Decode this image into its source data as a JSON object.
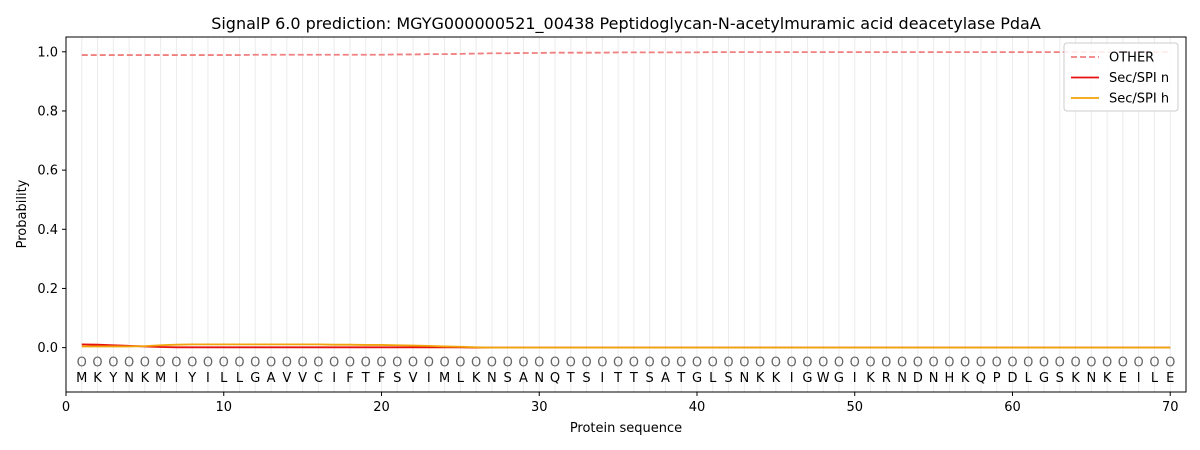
{
  "chart_data": {
    "type": "line",
    "title": "SignalP 6.0 prediction: MGYG000000521_00438 Peptidoglycan-N-acetylmuramic acid deacetylase PdaA",
    "xlabel": "Protein sequence",
    "ylabel": "Probability",
    "xlim": [
      0,
      71
    ],
    "ylim": [
      -0.15,
      1.05
    ],
    "xticks": [
      0,
      10,
      20,
      30,
      40,
      50,
      60,
      70
    ],
    "yticks": [
      0.0,
      0.2,
      0.4,
      0.6,
      0.8,
      1.0
    ],
    "xtick_labels": [
      "0",
      "10",
      "20",
      "30",
      "40",
      "50",
      "60",
      "70"
    ],
    "ytick_labels": [
      "0.0",
      "0.2",
      "0.4",
      "0.6",
      "0.8",
      "1.0"
    ],
    "grid": "vertical lines at each residue position",
    "legend_position": "top-right",
    "sequence": [
      "M",
      "K",
      "Y",
      "N",
      "K",
      "M",
      "I",
      "Y",
      "I",
      "L",
      "L",
      "G",
      "A",
      "V",
      "V",
      "C",
      "I",
      "F",
      "T",
      "F",
      "S",
      "V",
      "I",
      "M",
      "L",
      "K",
      "N",
      "S",
      "A",
      "N",
      "Q",
      "T",
      "S",
      "I",
      "T",
      "T",
      "S",
      "A",
      "T",
      "G",
      "L",
      "S",
      "N",
      "K",
      "K",
      "I",
      "G",
      "W",
      "G",
      "I",
      "K",
      "R",
      "N",
      "D",
      "N",
      "H",
      "K",
      "Q",
      "P",
      "D",
      "L",
      "G",
      "S",
      "K",
      "N",
      "K",
      "E",
      "I",
      "L",
      "E"
    ],
    "predicted_labels": [
      "O",
      "O",
      "O",
      "O",
      "O",
      "O",
      "O",
      "O",
      "O",
      "O",
      "O",
      "O",
      "O",
      "O",
      "O",
      "O",
      "O",
      "O",
      "O",
      "O",
      "O",
      "O",
      "O",
      "O",
      "O",
      "O",
      "O",
      "O",
      "O",
      "O",
      "O",
      "O",
      "O",
      "O",
      "O",
      "O",
      "O",
      "O",
      "O",
      "O",
      "O",
      "O",
      "O",
      "O",
      "O",
      "O",
      "O",
      "O",
      "O",
      "O",
      "O",
      "O",
      "O",
      "O",
      "O",
      "O",
      "O",
      "O",
      "O",
      "O",
      "O",
      "O",
      "O",
      "O",
      "O",
      "O",
      "O",
      "O",
      "O",
      "O"
    ],
    "x": [
      1,
      2,
      3,
      4,
      5,
      6,
      7,
      8,
      9,
      10,
      11,
      12,
      13,
      14,
      15,
      16,
      17,
      18,
      19,
      20,
      21,
      22,
      23,
      24,
      25,
      26,
      27,
      28,
      29,
      30,
      31,
      32,
      33,
      34,
      35,
      36,
      37,
      38,
      39,
      40,
      41,
      42,
      43,
      44,
      45,
      46,
      47,
      48,
      49,
      50,
      51,
      52,
      53,
      54,
      55,
      56,
      57,
      58,
      59,
      60,
      61,
      62,
      63,
      64,
      65,
      66,
      67,
      68,
      69,
      70
    ],
    "series": [
      {
        "name": "OTHER",
        "color": "#f08080",
        "style": "dashed",
        "values": [
          0.989,
          0.989,
          0.989,
          0.989,
          0.989,
          0.989,
          0.989,
          0.989,
          0.989,
          0.989,
          0.989,
          0.99,
          0.99,
          0.99,
          0.99,
          0.99,
          0.99,
          0.99,
          0.99,
          0.99,
          0.991,
          0.991,
          0.992,
          0.992,
          0.993,
          0.994,
          0.995,
          0.995,
          0.996,
          0.996,
          0.997,
          0.997,
          0.997,
          0.997,
          0.998,
          0.998,
          0.998,
          0.998,
          0.998,
          0.998,
          0.999,
          0.999,
          0.999,
          0.999,
          0.999,
          0.999,
          0.999,
          0.999,
          0.999,
          0.999,
          0.999,
          0.999,
          0.999,
          0.999,
          0.999,
          0.999,
          0.999,
          0.999,
          0.999,
          0.999,
          0.999,
          0.999,
          0.999,
          0.999,
          0.999,
          0.999,
          0.999,
          0.999,
          0.999,
          0.999
        ]
      },
      {
        "name": "Sec/SPI n",
        "color": "#e8110e",
        "style": "solid",
        "values": [
          0.011,
          0.01,
          0.008,
          0.006,
          0.004,
          0.002,
          0.001,
          0.001,
          0.001,
          0.001,
          0.001,
          0.001,
          0.001,
          0.001,
          0.001,
          0.001,
          0.001,
          0.001,
          0.001,
          0.001,
          0.001,
          0.001,
          0.001,
          0.001,
          0.001,
          0.0,
          0.0,
          0.0,
          0.0,
          0.0,
          0.0,
          0.0,
          0.0,
          0.0,
          0.0,
          0.0,
          0.0,
          0.0,
          0.0,
          0.0,
          0.0,
          0.0,
          0.0,
          0.0,
          0.0,
          0.0,
          0.0,
          0.0,
          0.0,
          0.0,
          0.0,
          0.0,
          0.0,
          0.0,
          0.0,
          0.0,
          0.0,
          0.0,
          0.0,
          0.0,
          0.0,
          0.0,
          0.0,
          0.0,
          0.0,
          0.0,
          0.0,
          0.0,
          0.0,
          0.0
        ]
      },
      {
        "name": "Sec/SPI h",
        "color": "#f0a30a",
        "style": "solid",
        "values": [
          0.004,
          0.004,
          0.004,
          0.004,
          0.005,
          0.008,
          0.01,
          0.011,
          0.011,
          0.011,
          0.011,
          0.011,
          0.011,
          0.011,
          0.011,
          0.011,
          0.01,
          0.01,
          0.009,
          0.009,
          0.008,
          0.007,
          0.006,
          0.004,
          0.003,
          0.001,
          0.0,
          0.0,
          0.0,
          0.0,
          0.0,
          0.0,
          0.0,
          0.0,
          0.0,
          0.0,
          0.0,
          0.0,
          0.0,
          0.0,
          0.0,
          0.0,
          0.0,
          0.0,
          0.0,
          0.0,
          0.0,
          0.0,
          0.0,
          0.0,
          0.0,
          0.0,
          0.0,
          0.0,
          0.0,
          0.0,
          0.0,
          0.0,
          0.0,
          0.0,
          0.0,
          0.0,
          0.0,
          0.0,
          0.0,
          0.0,
          0.0,
          0.0,
          0.0,
          0.0
        ]
      }
    ]
  }
}
